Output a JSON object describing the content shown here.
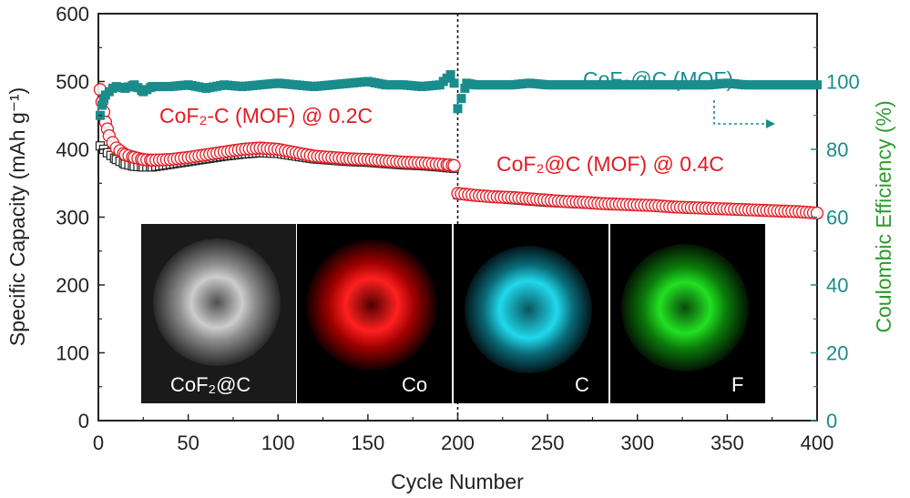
{
  "colors": {
    "capacity": "#e31b23",
    "efficiency": "#1a8c8c",
    "right_axis_title": "#2e9a2e",
    "marker_black": "#222222"
  },
  "chart_data": {
    "type": "scatter",
    "xlabel": "Cycle Number",
    "ylabel": "Specific Capacity (mAh g⁻¹)",
    "y2label": "Coulombic Efficiency (%)",
    "xlim": [
      0,
      400
    ],
    "ylim": [
      0,
      600
    ],
    "y2lim": [
      0,
      120
    ],
    "x_ticks": [
      "0",
      "50",
      "100",
      "150",
      "200",
      "250",
      "300",
      "350",
      "400"
    ],
    "y_ticks": [
      "0",
      "100",
      "200",
      "300",
      "400",
      "500",
      "600"
    ],
    "y2_ticks": [
      "0",
      "20",
      "40",
      "60",
      "80",
      "100"
    ],
    "divider_x": 200,
    "annotations": [
      {
        "text": "CoF₂-C (MOF) @ 0.2C",
        "color": "capacity"
      },
      {
        "text": "CoF₂@C (MOF) @ 0.4C",
        "color": "capacity"
      },
      {
        "text": "CoF₂@C (MOF)",
        "color": "efficiency"
      }
    ],
    "arrow_direction": "right",
    "series": [
      {
        "axis": "left",
        "marker": "open-circle-red",
        "points": [
          [
            1,
            488
          ],
          [
            2,
            470
          ],
          [
            3,
            455
          ],
          [
            4,
            440
          ],
          [
            5,
            430
          ],
          [
            6,
            420
          ],
          [
            8,
            410
          ],
          [
            10,
            402
          ],
          [
            12,
            398
          ],
          [
            15,
            392
          ],
          [
            20,
            388
          ],
          [
            25,
            385
          ],
          [
            30,
            384
          ],
          [
            40,
            385
          ],
          [
            50,
            388
          ],
          [
            60,
            392
          ],
          [
            70,
            396
          ],
          [
            80,
            400
          ],
          [
            90,
            402
          ],
          [
            100,
            400
          ],
          [
            110,
            395
          ],
          [
            120,
            390
          ],
          [
            130,
            388
          ],
          [
            140,
            386
          ],
          [
            150,
            385
          ],
          [
            160,
            383
          ],
          [
            170,
            381
          ],
          [
            180,
            380
          ],
          [
            190,
            378
          ],
          [
            195,
            377
          ],
          [
            198,
            376
          ],
          [
            200,
            335
          ],
          [
            210,
            332
          ],
          [
            220,
            330
          ],
          [
            230,
            329
          ],
          [
            240,
            327
          ],
          [
            250,
            325
          ],
          [
            260,
            323
          ],
          [
            270,
            322
          ],
          [
            280,
            320
          ],
          [
            290,
            319
          ],
          [
            300,
            318
          ],
          [
            310,
            317
          ],
          [
            320,
            315
          ],
          [
            330,
            314
          ],
          [
            340,
            313
          ],
          [
            350,
            312
          ],
          [
            360,
            311
          ],
          [
            370,
            310
          ],
          [
            380,
            309
          ],
          [
            390,
            308
          ],
          [
            400,
            306
          ]
        ]
      },
      {
        "axis": "left",
        "marker": "open-square-black",
        "points": [
          [
            1,
            405
          ],
          [
            3,
            400
          ],
          [
            5,
            395
          ],
          [
            10,
            385
          ],
          [
            15,
            378
          ],
          [
            20,
            375
          ],
          [
            25,
            374
          ],
          [
            30,
            374
          ],
          [
            40,
            378
          ],
          [
            50,
            382
          ],
          [
            60,
            386
          ],
          [
            70,
            390
          ],
          [
            80,
            393
          ],
          [
            90,
            395
          ],
          [
            100,
            394
          ],
          [
            110,
            390
          ],
          [
            120,
            386
          ],
          [
            130,
            384
          ],
          [
            140,
            382
          ],
          [
            150,
            381
          ],
          [
            160,
            379
          ],
          [
            170,
            377
          ],
          [
            180,
            376
          ],
          [
            190,
            374
          ],
          [
            198,
            372
          ],
          [
            200,
            333
          ],
          [
            220,
            328
          ],
          [
            250,
            322
          ],
          [
            280,
            318
          ],
          [
            300,
            316
          ],
          [
            330,
            313
          ],
          [
            360,
            310
          ],
          [
            390,
            307
          ],
          [
            400,
            305
          ]
        ]
      },
      {
        "axis": "right",
        "marker": "filled-square-teal",
        "points": [
          [
            1,
            90
          ],
          [
            2,
            93
          ],
          [
            3,
            95
          ],
          [
            4,
            96
          ],
          [
            6,
            97
          ],
          [
            8,
            98
          ],
          [
            10,
            98.5
          ],
          [
            15,
            98
          ],
          [
            20,
            99
          ],
          [
            25,
            97
          ],
          [
            30,
            98.5
          ],
          [
            40,
            98.5
          ],
          [
            50,
            99
          ],
          [
            60,
            98
          ],
          [
            70,
            99
          ],
          [
            80,
            98.5
          ],
          [
            90,
            99
          ],
          [
            100,
            99.5
          ],
          [
            110,
            99
          ],
          [
            120,
            98.5
          ],
          [
            130,
            99
          ],
          [
            140,
            99.5
          ],
          [
            150,
            100
          ],
          [
            160,
            99
          ],
          [
            170,
            99
          ],
          [
            180,
            98.5
          ],
          [
            190,
            99
          ],
          [
            196,
            102
          ],
          [
            198,
            99.5
          ],
          [
            200,
            92
          ],
          [
            205,
            99.5
          ],
          [
            210,
            99
          ],
          [
            220,
            99
          ],
          [
            230,
            99
          ],
          [
            240,
            99.5
          ],
          [
            250,
            99
          ],
          [
            260,
            99
          ],
          [
            270,
            99
          ],
          [
            280,
            99
          ],
          [
            290,
            99
          ],
          [
            300,
            99
          ],
          [
            310,
            99
          ],
          [
            320,
            99
          ],
          [
            330,
            99
          ],
          [
            340,
            99
          ],
          [
            350,
            99.5
          ],
          [
            360,
            99
          ],
          [
            370,
            99
          ],
          [
            380,
            99
          ],
          [
            390,
            99
          ],
          [
            400,
            99
          ]
        ]
      }
    ]
  },
  "inset_panels": [
    {
      "label": "CoF₂@C",
      "icon": "gray-haze-icon",
      "color": "#c8c8c8"
    },
    {
      "label": "Co",
      "icon": "red-haze-icon",
      "color": "#ff1a1a"
    },
    {
      "label": "C",
      "icon": "cyan-haze-icon",
      "color": "#19d3e6"
    },
    {
      "label": "F",
      "icon": "green-haze-icon",
      "color": "#22dd22"
    }
  ]
}
